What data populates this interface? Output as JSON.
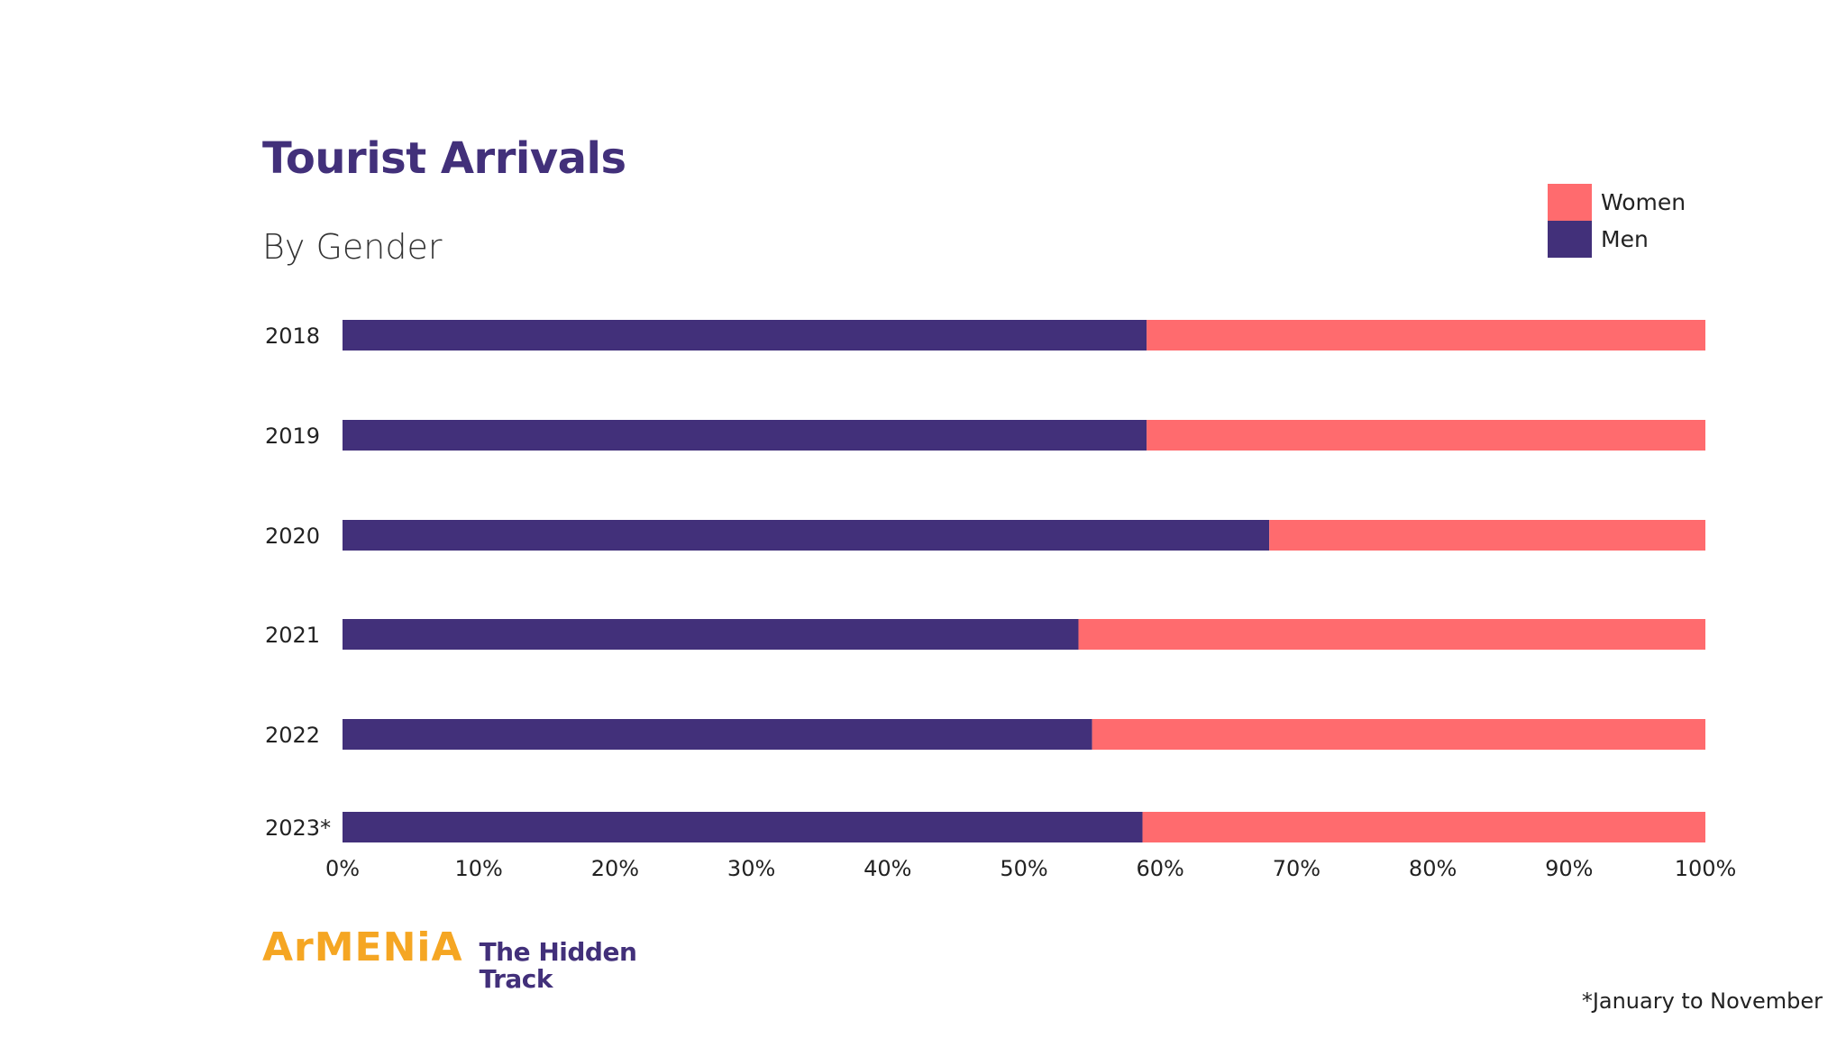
{
  "header": {
    "title": "Tourist Arrivals",
    "subtitle": "By Gender"
  },
  "colors": {
    "women": "#ff6b6e",
    "men": "#42307a",
    "brand_orange": "#f5a623",
    "brand_purple": "#42307a"
  },
  "chart_data": {
    "type": "bar",
    "orientation": "horizontal",
    "stacked": true,
    "categories": [
      "2018",
      "2019",
      "2020",
      "2021",
      "2022",
      "2023*"
    ],
    "series": [
      {
        "name": "Men",
        "values": [
          59,
          59,
          68,
          54,
          55,
          58.7
        ]
      },
      {
        "name": "Women",
        "values": [
          41,
          41,
          32,
          46,
          45,
          41.3
        ]
      }
    ],
    "xlim": [
      0,
      100
    ],
    "x_ticks": [
      "0%",
      "10%",
      "20%",
      "30%",
      "40%",
      "50%",
      "60%",
      "70%",
      "80%",
      "90%",
      "100%"
    ],
    "grid": false,
    "legend": {
      "position": "top-right",
      "items": [
        "Women",
        "Men"
      ]
    }
  },
  "footnote": "*January to November",
  "logo": {
    "brand": "ArMENiA",
    "tagline_line1": "The Hidden",
    "tagline_line2": "Track"
  }
}
